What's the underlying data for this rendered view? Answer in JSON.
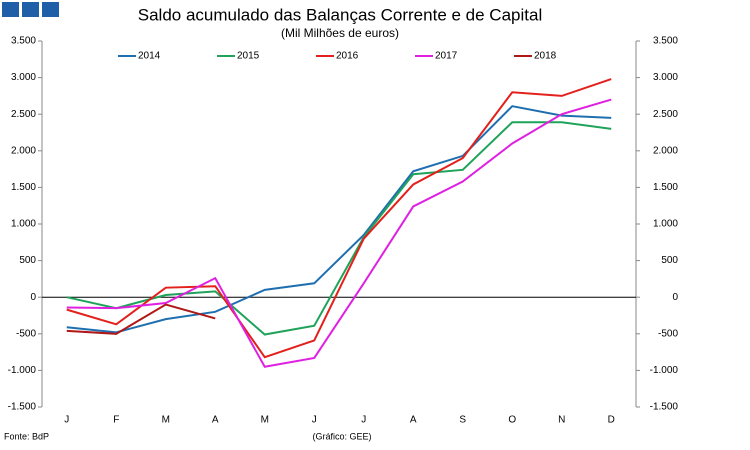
{
  "chart_data": {
    "type": "line",
    "title": "Saldo acumulado das Balanças Corrente e de Capital",
    "subtitle": "(Mil Milhões de euros)",
    "source": "Fonte: BdP",
    "credit": "(Gráfico: GEE)",
    "categories": [
      "J",
      "F",
      "M",
      "A",
      "M",
      "J",
      "J",
      "A",
      "S",
      "O",
      "N",
      "D"
    ],
    "series": [
      {
        "name": "2014",
        "color": "#1f6fb0",
        "values": [
          -410,
          -480,
          -300,
          -200,
          100,
          190,
          850,
          1720,
          1930,
          2610,
          2480,
          2450
        ]
      },
      {
        "name": "2015",
        "color": "#1fa35a",
        "values": [
          0,
          -150,
          30,
          80,
          -510,
          -390,
          820,
          1680,
          1740,
          2390,
          2390,
          2300
        ]
      },
      {
        "name": "2016",
        "color": "#e3201b",
        "values": [
          -170,
          -370,
          130,
          150,
          -820,
          -590,
          800,
          1540,
          1900,
          2800,
          2750,
          2980
        ]
      },
      {
        "name": "2017",
        "color": "#e020e0",
        "values": [
          -140,
          -150,
          -80,
          260,
          -950,
          -830,
          190,
          1240,
          1580,
          2100,
          2500,
          2700
        ]
      },
      {
        "name": "2018",
        "color": "#b01818",
        "values": [
          -460,
          -500,
          -100,
          -290,
          null,
          null,
          null,
          null,
          null,
          null,
          null,
          null
        ]
      }
    ],
    "ylim": [
      -1500,
      3500
    ],
    "yticks": [
      {
        "value": -1500,
        "label": "-1.500"
      },
      {
        "value": -1000,
        "label": "-1.000"
      },
      {
        "value": -500,
        "label": "-500"
      },
      0,
      500,
      {
        "value": 1000,
        "label": "1.000"
      },
      {
        "value": 1500,
        "label": "1.500"
      },
      {
        "value": 2000,
        "label": "2.000"
      },
      {
        "value": 2500,
        "label": "2.500"
      },
      {
        "value": 3000,
        "label": "3.000"
      },
      {
        "value": 3500,
        "label": "3.500"
      }
    ],
    "y2lim": [
      -1500,
      3500
    ],
    "y2ticks": [
      {
        "value": -1500,
        "label": "-1.500"
      },
      {
        "value": -1000,
        "label": "-1.000"
      },
      {
        "value": -500,
        "label": "-500"
      },
      0,
      500,
      {
        "value": 1000,
        "label": "1.000"
      },
      {
        "value": 1500,
        "label": "1.500"
      },
      {
        "value": 2000,
        "label": "2.000"
      },
      {
        "value": 2500,
        "label": "2.500"
      },
      {
        "value": 3000,
        "label": "3.000"
      },
      {
        "value": 3500,
        "label": "3.500"
      }
    ],
    "legend": "top"
  }
}
